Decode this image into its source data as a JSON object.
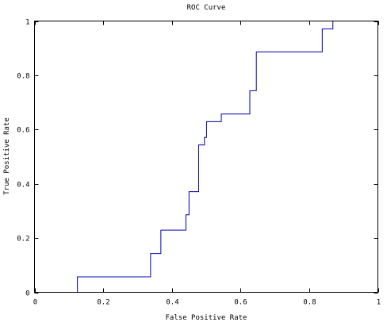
{
  "chart_data": {
    "type": "line",
    "title": "ROC Curve",
    "xlabel": "False Positive Rate",
    "ylabel": "True Positive Rate",
    "xlim": [
      0,
      1
    ],
    "ylim": [
      0,
      1
    ],
    "x_ticks": [
      0,
      0.2,
      0.4,
      0.6,
      0.8,
      1
    ],
    "y_ticks": [
      0,
      0.2,
      0.4,
      0.6,
      0.8,
      1
    ],
    "x_tick_labels": [
      "0",
      "0.2",
      "0.4",
      "0.6",
      "0.8",
      "1"
    ],
    "y_tick_labels": [
      "0",
      "0.2",
      "0.4",
      "0.6",
      "0.8",
      "1"
    ],
    "grid": false,
    "legend": "none",
    "series": [
      {
        "color": "#0000b4",
        "x": [
          0,
          0.125,
          0.125,
          0.338,
          0.338,
          0.368,
          0.368,
          0.441,
          0.441,
          0.45,
          0.45,
          0.478,
          0.478,
          0.495,
          0.495,
          0.501,
          0.501,
          0.544,
          0.544,
          0.627,
          0.627,
          0.646,
          0.646,
          0.838,
          0.838,
          0.869,
          0.869,
          1
        ],
        "y": [
          0,
          0,
          0.057,
          0.057,
          0.143,
          0.143,
          0.229,
          0.229,
          0.286,
          0.286,
          0.371,
          0.371,
          0.543,
          0.543,
          0.571,
          0.571,
          0.629,
          0.629,
          0.657,
          0.657,
          0.743,
          0.743,
          0.886,
          0.886,
          0.971,
          0.971,
          1,
          1
        ]
      }
    ]
  }
}
